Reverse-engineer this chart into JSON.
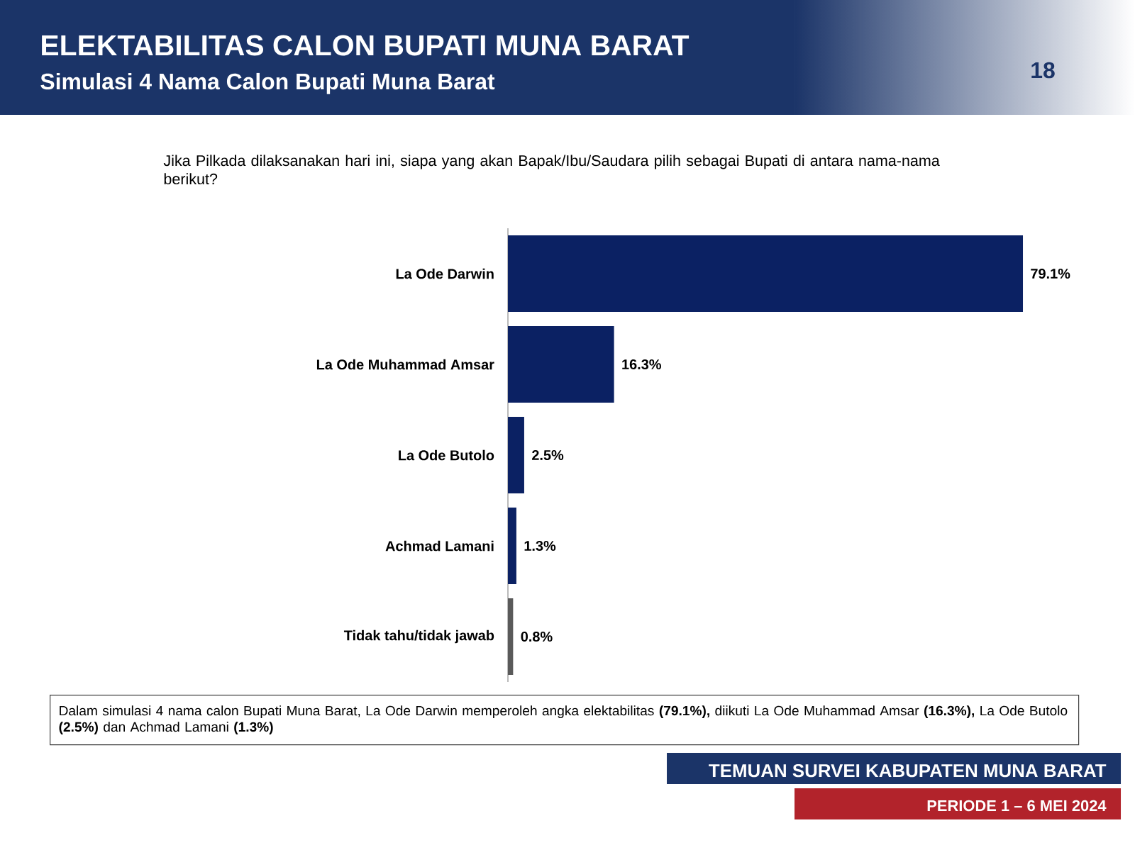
{
  "chart_data": {
    "type": "bar",
    "orientation": "horizontal",
    "title": "ELEKTABILITAS CALON BUPATI MUNA BARAT",
    "subtitle": "Simulasi 4 Nama Calon Bupati Muna Barat",
    "categories": [
      "La Ode Darwin",
      "La Ode Muhammad Amsar",
      "La Ode Butolo",
      "Achmad Lamani",
      "Tidak tahu/tidak jawab"
    ],
    "values": [
      79.1,
      16.3,
      2.5,
      1.3,
      0.8
    ],
    "colors": [
      "#0b2163",
      "#0b2163",
      "#0b2163",
      "#0b2163",
      "#5a5a5a"
    ],
    "value_labels": [
      "79.1%",
      "16.3%",
      "2.5%",
      "1.3%",
      "0.8%"
    ],
    "annotations": [
      "Jika Pilkada dilaksanakan hari ini, siapa yang akan Bapak/Ibu/Saudara pilih sebagai Bupati di antara nama-nama berikut?",
      "Dalam simulasi 4 nama calon Bupati Muna Barat, La Ode Darwin memperoleh angka elektabilitas **(79.1%),** diikuti La Ode Muhammad Amsar **(16.3%),** La Ode Butolo **(2.5%)** dan Achmad Lamani **(1.3%)**",
      "18",
      "TEMUAN SURVEI KABUPATEN MUNA BARAT",
      "PERIODE 1 – 6 MEI 2024"
    ]
  }
}
